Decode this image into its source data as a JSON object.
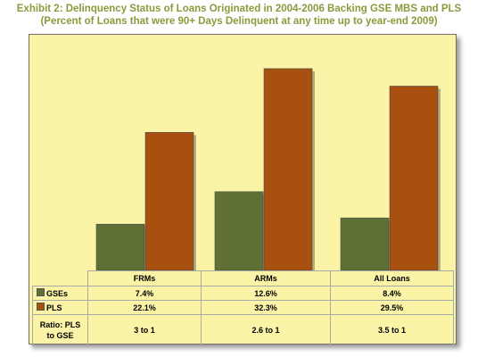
{
  "title_line1": "Exhibit 2: Delinquency Status of Loans Originated in 2004-2006 Backing GSE MBS and PLS",
  "title_line2": "(Percent of Loans that were 90+ Days Delinquent at any time up to year-end 2009)",
  "colors": {
    "title": "#8c9a3c",
    "panel_bg": "#fbf4a6",
    "gse": "#5e7034",
    "pls": "#a8500f"
  },
  "chart_data": {
    "type": "bar",
    "categories": [
      "FRMs",
      "ARMs",
      "All Loans"
    ],
    "series": [
      {
        "name": "GSEs",
        "values": [
          7.4,
          12.6,
          8.4
        ],
        "labels": [
          "7.4%",
          "12.6%",
          "8.4%"
        ]
      },
      {
        "name": "PLS",
        "values": [
          22.1,
          32.3,
          29.5
        ],
        "labels": [
          "22.1%",
          "32.3%",
          "29.5%"
        ]
      }
    ],
    "ratio_row": {
      "label_line1": "Ratio: PLS",
      "label_line2": "to GSE",
      "values": [
        "3 to 1",
        "2.6 to 1",
        "3.5 to 1"
      ]
    },
    "ylim": [
      0,
      35
    ],
    "legend": "table-rows"
  }
}
